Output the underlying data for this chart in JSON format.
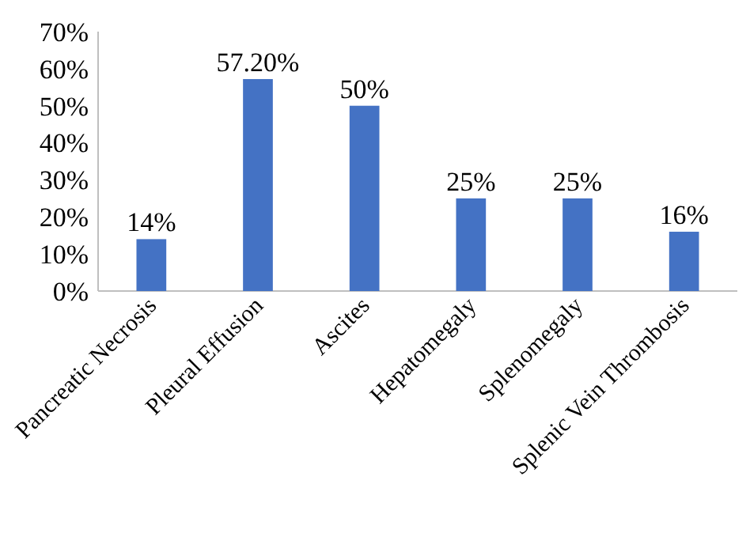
{
  "chart_data": {
    "type": "bar",
    "categories": [
      "Pancreatic Necrosis",
      "Pleural Effusion",
      "Ascites",
      "Hepatomegaly",
      "Splenomegaly",
      "Splenic Vein Thrombosis"
    ],
    "values": [
      14,
      57.2,
      50,
      25,
      25,
      16
    ],
    "value_labels": [
      "14%",
      "57.20%",
      "50%",
      "25%",
      "25%",
      "16%"
    ],
    "color": "#4472c4",
    "ylim": [
      0,
      70
    ],
    "yticks": [
      {
        "value": 0,
        "label": "0%"
      },
      {
        "value": 10,
        "label": "10%"
      },
      {
        "value": 20,
        "label": "20%"
      },
      {
        "value": 30,
        "label": "30%"
      },
      {
        "value": 40,
        "label": "40%"
      },
      {
        "value": 50,
        "label": "50%"
      },
      {
        "value": 60,
        "label": "60%"
      },
      {
        "value": 70,
        "label": "70%"
      }
    ],
    "grid": false
  }
}
